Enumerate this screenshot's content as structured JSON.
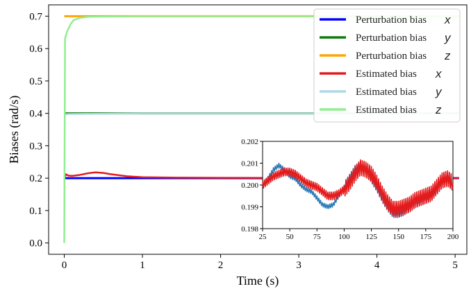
{
  "chart_data": [
    {
      "type": "line",
      "xlabel": "Time (s)",
      "ylabel": "Biases (rad/s)",
      "xlim": [
        -0.2,
        5.15
      ],
      "ylim": [
        -0.035,
        0.735
      ],
      "xticks": [
        0,
        1,
        2,
        3,
        4,
        5
      ],
      "yticks": [
        0.0,
        0.1,
        0.2,
        0.3,
        0.4,
        0.5,
        0.6,
        0.7
      ],
      "xtick_labels": [
        "0",
        "1",
        "2",
        "3",
        "4",
        "5"
      ],
      "ytick_labels": [
        "0.0",
        "0.1",
        "0.2",
        "0.3",
        "0.4",
        "0.5",
        "0.6",
        "0.7"
      ],
      "grid": false,
      "legend_position": "top-right",
      "series": [
        {
          "name": "Perturbation bias",
          "var": "x",
          "color": "#0000ff",
          "x": [
            0,
            5.05
          ],
          "y": [
            0.2,
            0.2
          ]
        },
        {
          "name": "Perturbation bias",
          "var": "y",
          "color": "#0a7d0a",
          "x": [
            0,
            0.5,
            1.0,
            2.0,
            3.0,
            4.0,
            5.05
          ],
          "y": [
            0.4,
            0.4,
            0.4,
            0.4,
            0.4,
            0.4,
            0.4
          ]
        },
        {
          "name": "Perturbation bias",
          "var": "z",
          "color": "#ffa500",
          "x": [
            0,
            5.05
          ],
          "y": [
            0.7,
            0.7
          ]
        },
        {
          "name": "Estimated bias",
          "var": "x",
          "color": "#e41a1c",
          "x": [
            0,
            0.02,
            0.05,
            0.1,
            0.2,
            0.3,
            0.4,
            0.5,
            0.6,
            0.8,
            1.0,
            1.5,
            2.0,
            3.0,
            4.0,
            5.05
          ],
          "y": [
            0.2,
            0.212,
            0.208,
            0.207,
            0.21,
            0.215,
            0.218,
            0.216,
            0.212,
            0.206,
            0.203,
            0.2015,
            0.201,
            0.2005,
            0.2003,
            0.2003
          ]
        },
        {
          "name": "Estimated bias",
          "var": "y",
          "color": "#add8e6",
          "x": [
            0,
            0.02,
            0.05,
            0.1,
            0.5,
            1.0,
            2.0,
            3.0,
            4.0,
            5.05
          ],
          "y": [
            0.4,
            0.397,
            0.398,
            0.398,
            0.399,
            0.4,
            0.4,
            0.4,
            0.4,
            0.4
          ]
        },
        {
          "name": "Estimated bias",
          "var": "z",
          "color": "#90ee90",
          "x": [
            0,
            0.01,
            0.02,
            0.04,
            0.08,
            0.12,
            0.2,
            0.3,
            0.5,
            1.0,
            2.0,
            3.0,
            4.0,
            5.05
          ],
          "y": [
            0.0,
            0.63,
            0.64,
            0.655,
            0.675,
            0.688,
            0.695,
            0.698,
            0.699,
            0.7,
            0.7,
            0.7,
            0.7,
            0.7
          ]
        }
      ]
    },
    {
      "type": "line",
      "inset": true,
      "xlim": [
        25,
        200
      ],
      "ylim": [
        0.198,
        0.202
      ],
      "xticks": [
        25,
        50,
        75,
        100,
        125,
        150,
        175,
        200
      ],
      "yticks": [
        0.198,
        0.199,
        0.2,
        0.201,
        0.202
      ],
      "xtick_labels": [
        "25",
        "50",
        "75",
        "100",
        "125",
        "150",
        "175",
        "200"
      ],
      "ytick_labels": [
        "0.198",
        "0.199",
        "0.200",
        "0.201",
        "0.202"
      ],
      "series": [
        {
          "color": "#2c7bb6",
          "x": [
            25,
            30,
            35,
            40,
            45,
            50,
            55,
            60,
            65,
            70,
            75,
            80,
            85,
            90,
            95,
            100,
            105,
            110,
            115,
            120,
            125,
            130,
            135,
            140,
            145,
            150,
            155,
            160,
            165,
            170,
            175,
            180,
            185,
            190,
            195,
            200
          ],
          "y": [
            0.2,
            0.2003,
            0.2007,
            0.2009,
            0.2007,
            0.2004,
            0.2003,
            0.2,
            0.1998,
            0.1997,
            0.1994,
            0.1991,
            0.199,
            0.1991,
            0.1995,
            0.1999,
            0.2003,
            0.2007,
            0.2009,
            0.2007,
            0.2003,
            0.1999,
            0.1994,
            0.199,
            0.1987,
            0.1987,
            0.1988,
            0.199,
            0.1992,
            0.1993,
            0.1994,
            0.1995,
            0.1998,
            0.2002,
            0.2003,
            0.1999
          ]
        },
        {
          "color": "#e41a1c",
          "x": [
            25,
            30,
            35,
            40,
            45,
            50,
            55,
            60,
            65,
            70,
            75,
            80,
            85,
            90,
            95,
            100,
            105,
            110,
            115,
            120,
            125,
            130,
            135,
            140,
            145,
            150,
            155,
            160,
            165,
            170,
            175,
            180,
            185,
            190,
            195,
            200
          ],
          "y": [
            0.2,
            0.2002,
            0.2004,
            0.2005,
            0.2006,
            0.2006,
            0.2005,
            0.2003,
            0.2001,
            0.2,
            0.1999,
            0.1997,
            0.1995,
            0.1995,
            0.1996,
            0.1998,
            0.2001,
            0.2005,
            0.2008,
            0.2007,
            0.2005,
            0.2001,
            0.1996,
            0.1992,
            0.1989,
            0.1989,
            0.199,
            0.1991,
            0.1993,
            0.1994,
            0.1995,
            0.1996,
            0.1999,
            0.2002,
            0.2003,
            0.2001
          ]
        }
      ]
    }
  ]
}
